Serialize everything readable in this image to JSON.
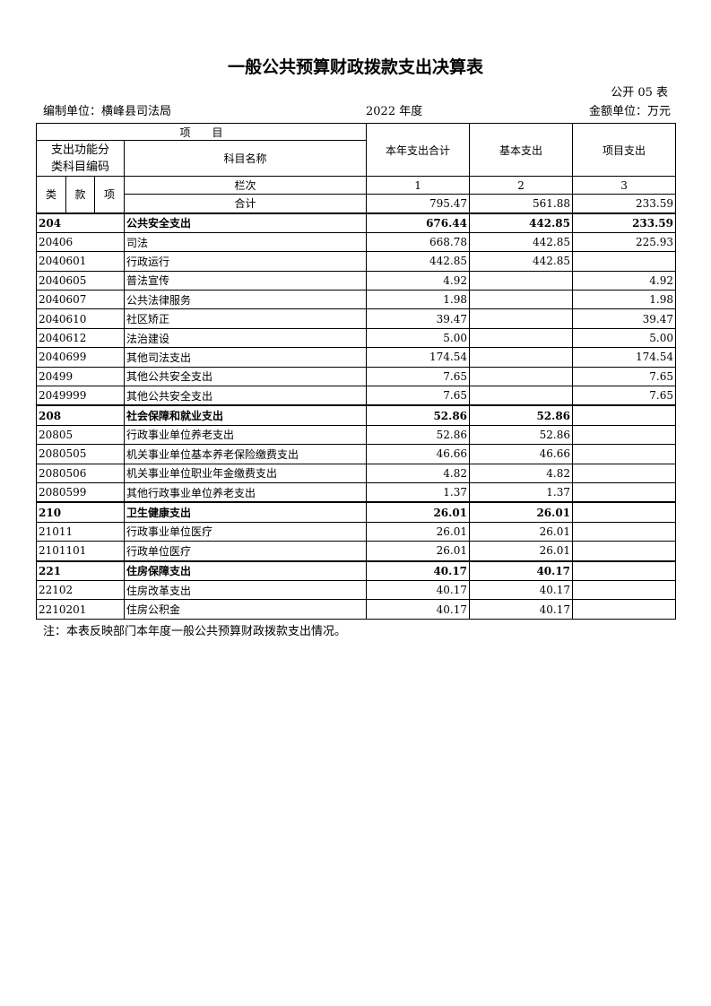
{
  "title": "一般公共预算财政拨款支出决算表",
  "table_no": "公开 05 表",
  "unit": "编制单位：横峰县司法局",
  "year": "2022 年度",
  "currency": "金额单位：万元",
  "header": {
    "item": "项　　目",
    "code_group": "支出功能分类科目编码",
    "code_group_l1": "支出功能分",
    "code_group_l2": "类科目编码",
    "name": "科目名称",
    "col1": "本年支出合计",
    "col2": "基本支出",
    "col3": "项目支出",
    "lei": "类",
    "kuan": "款",
    "xiang": "项",
    "lanci": "栏次",
    "n1": "1",
    "n2": "2",
    "n3": "3"
  },
  "total": {
    "label": "合计",
    "c1": "795.47",
    "c2": "561.88",
    "c3": "233.59"
  },
  "rows": [
    {
      "code": "204",
      "name": "公共安全支出",
      "c1": "676.44",
      "c2": "442.85",
      "c3": "233.59",
      "bold": true
    },
    {
      "code": "20406",
      "name": "司法",
      "c1": "668.78",
      "c2": "442.85",
      "c3": "225.93"
    },
    {
      "code": "2040601",
      "name": "行政运行",
      "c1": "442.85",
      "c2": "442.85",
      "c3": ""
    },
    {
      "code": "2040605",
      "name": "普法宣传",
      "c1": "4.92",
      "c2": "",
      "c3": "4.92"
    },
    {
      "code": "2040607",
      "name": "公共法律服务",
      "c1": "1.98",
      "c2": "",
      "c3": "1.98"
    },
    {
      "code": "2040610",
      "name": "社区矫正",
      "c1": "39.47",
      "c2": "",
      "c3": "39.47"
    },
    {
      "code": "2040612",
      "name": "法治建设",
      "c1": "5.00",
      "c2": "",
      "c3": "5.00"
    },
    {
      "code": "2040699",
      "name": "其他司法支出",
      "c1": "174.54",
      "c2": "",
      "c3": "174.54"
    },
    {
      "code": "20499",
      "name": "其他公共安全支出",
      "c1": "7.65",
      "c2": "",
      "c3": "7.65"
    },
    {
      "code": "2049999",
      "name": "其他公共安全支出",
      "c1": "7.65",
      "c2": "",
      "c3": "7.65"
    },
    {
      "code": "208",
      "name": "社会保障和就业支出",
      "c1": "52.86",
      "c2": "52.86",
      "c3": "",
      "bold": true
    },
    {
      "code": "20805",
      "name": "行政事业单位养老支出",
      "c1": "52.86",
      "c2": "52.86",
      "c3": ""
    },
    {
      "code": "2080505",
      "name": "机关事业单位基本养老保险缴费支出",
      "c1": "46.66",
      "c2": "46.66",
      "c3": ""
    },
    {
      "code": "2080506",
      "name": "机关事业单位职业年金缴费支出",
      "c1": "4.82",
      "c2": "4.82",
      "c3": ""
    },
    {
      "code": "2080599",
      "name": "其他行政事业单位养老支出",
      "c1": "1.37",
      "c2": "1.37",
      "c3": ""
    },
    {
      "code": "210",
      "name": "卫生健康支出",
      "c1": "26.01",
      "c2": "26.01",
      "c3": "",
      "bold": true
    },
    {
      "code": "21011",
      "name": "行政事业单位医疗",
      "c1": "26.01",
      "c2": "26.01",
      "c3": ""
    },
    {
      "code": "2101101",
      "name": "行政单位医疗",
      "c1": "26.01",
      "c2": "26.01",
      "c3": ""
    },
    {
      "code": "221",
      "name": "住房保障支出",
      "c1": "40.17",
      "c2": "40.17",
      "c3": "",
      "bold": true
    },
    {
      "code": "22102",
      "name": "住房改革支出",
      "c1": "40.17",
      "c2": "40.17",
      "c3": ""
    },
    {
      "code": "2210201",
      "name": "住房公积金",
      "c1": "40.17",
      "c2": "40.17",
      "c3": ""
    }
  ],
  "note": "注：本表反映部门本年度一般公共预算财政拨款支出情况。"
}
